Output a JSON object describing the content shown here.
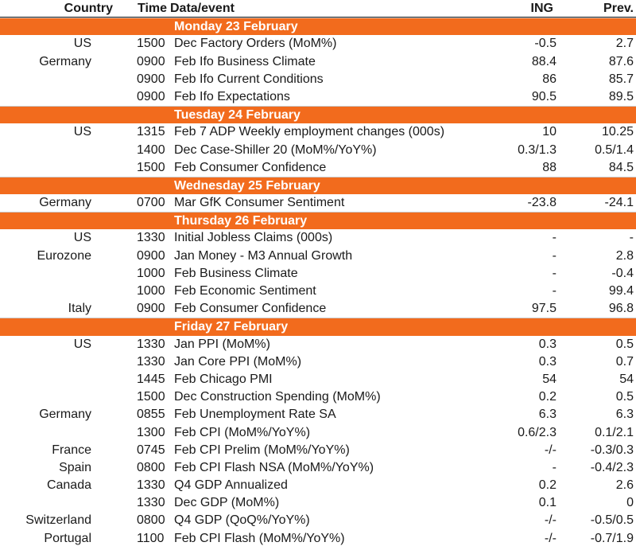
{
  "header": {
    "country": "Country",
    "time": "Time",
    "event": "Data/event",
    "ing": "ING",
    "prev": "Prev."
  },
  "sections": [
    {
      "day": "Monday 23 February",
      "rows": [
        {
          "country": "US",
          "time": "1500",
          "event": "Dec Factory Orders (MoM%)",
          "ing": "-0.5",
          "prev": "2.7"
        },
        {
          "country": "Germany",
          "time": "0900",
          "event": "Feb Ifo Business Climate",
          "ing": "88.4",
          "prev": "87.6"
        },
        {
          "country": "",
          "time": "0900",
          "event": "Feb Ifo Current Conditions",
          "ing": "86",
          "prev": "85.7"
        },
        {
          "country": "",
          "time": "0900",
          "event": "Feb Ifo Expectations",
          "ing": "90.5",
          "prev": "89.5"
        }
      ]
    },
    {
      "day": "Tuesday 24 February",
      "rows": [
        {
          "country": "US",
          "time": "1315",
          "event": "Feb 7 ADP Weekly employment changes (000s)",
          "ing": "10",
          "prev": "10.25"
        },
        {
          "country": "",
          "time": "1400",
          "event": "Dec Case-Shiller 20 (MoM%/YoY%)",
          "ing": "0.3/1.3",
          "prev": "0.5/1.4"
        },
        {
          "country": "",
          "time": "1500",
          "event": "Feb Consumer Confidence",
          "ing": "88",
          "prev": "84.5"
        }
      ]
    },
    {
      "day": "Wednesday 25 February",
      "rows": [
        {
          "country": "Germany",
          "time": "0700",
          "event": "Mar GfK Consumer Sentiment",
          "ing": "-23.8",
          "prev": "-24.1"
        }
      ]
    },
    {
      "day": "Thursday 26 February",
      "rows": [
        {
          "country": "US",
          "time": "1330",
          "event": "Initial Jobless Claims (000s)",
          "ing": "-",
          "prev": "-"
        },
        {
          "country": "Eurozone",
          "time": "0900",
          "event": "Jan Money - M3 Annual Growth",
          "ing": "-",
          "prev": "2.8"
        },
        {
          "country": "",
          "time": "1000",
          "event": "Feb Business Climate",
          "ing": "-",
          "prev": "-0.4"
        },
        {
          "country": "",
          "time": "1000",
          "event": "Feb Economic Sentiment",
          "ing": "-",
          "prev": "99.4"
        },
        {
          "country": "Italy",
          "time": "0900",
          "event": "Feb Consumer Confidence",
          "ing": "97.5",
          "prev": "96.8"
        }
      ]
    },
    {
      "day": "Friday 27 February",
      "rows": [
        {
          "country": "US",
          "time": "1330",
          "event": "Jan PPI (MoM%)",
          "ing": "0.3",
          "prev": "0.5"
        },
        {
          "country": "",
          "time": "1330",
          "event": "Jan Core PPI (MoM%)",
          "ing": "0.3",
          "prev": "0.7"
        },
        {
          "country": "",
          "time": "1445",
          "event": "Feb Chicago PMI",
          "ing": "54",
          "prev": "54"
        },
        {
          "country": "",
          "time": "1500",
          "event": "Dec Construction Spending (MoM%)",
          "ing": "0.2",
          "prev": "0.5"
        },
        {
          "country": "Germany",
          "time": "0855",
          "event": "Feb Unemployment Rate SA",
          "ing": "6.3",
          "prev": "6.3"
        },
        {
          "country": "",
          "time": "1300",
          "event": "Feb CPI (MoM%/YoY%)",
          "ing": "0.6/2.3",
          "prev": "0.1/2.1"
        },
        {
          "country": "France",
          "time": "0745",
          "event": "Feb CPI  Prelim (MoM%/YoY%)",
          "ing": "-/-",
          "prev": "-0.3/0.3"
        },
        {
          "country": "Spain",
          "time": "0800",
          "event": "Feb CPI Flash NSA (MoM%/YoY%)",
          "ing": "-",
          "prev": "-0.4/2.3"
        },
        {
          "country": "Canada",
          "time": "1330",
          "event": "Q4 GDP Annualized",
          "ing": "0.2",
          "prev": "2.6"
        },
        {
          "country": "",
          "time": "1330",
          "event": "Dec GDP (MoM%)",
          "ing": "0.1",
          "prev": "0"
        },
        {
          "country": "Switzerland",
          "time": "0800",
          "event": "Q4 GDP (QoQ%/YoY%)",
          "ing": "-/-",
          "prev": "-0.5/0.5"
        },
        {
          "country": "Portugal",
          "time": "1100",
          "event": "Feb CPI Flash (MoM%/YoY%)",
          "ing": "-/-",
          "prev": "-0.7/1.9"
        }
      ]
    }
  ],
  "colors": {
    "day_band": "#f26b1d",
    "day_text": "#ffffff"
  }
}
